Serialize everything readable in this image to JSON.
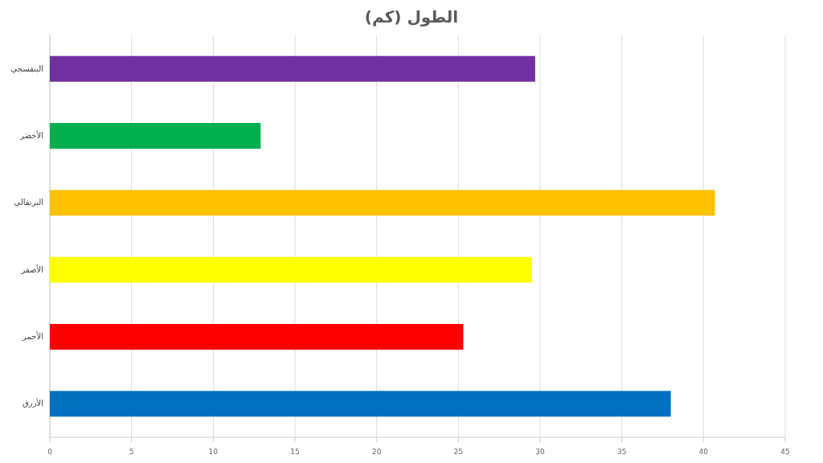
{
  "chart_data": {
    "type": "bar",
    "orientation": "horizontal",
    "title": "الطول (كم)",
    "categories": [
      "البنفسجي",
      "الأخضر",
      "البرتقالي",
      "الأصفر",
      "الأحمر",
      "الأزرق"
    ],
    "values": [
      29.7,
      12.9,
      40.7,
      29.5,
      25.3,
      38.0
    ],
    "colors": [
      "#7030a0",
      "#00b050",
      "#ffc000",
      "#ffff00",
      "#ff0000",
      "#0070c0"
    ],
    "xlim": [
      0,
      45
    ],
    "xticks": [
      0,
      5,
      10,
      15,
      20,
      25,
      30,
      35,
      40,
      45
    ],
    "grid": "x"
  }
}
